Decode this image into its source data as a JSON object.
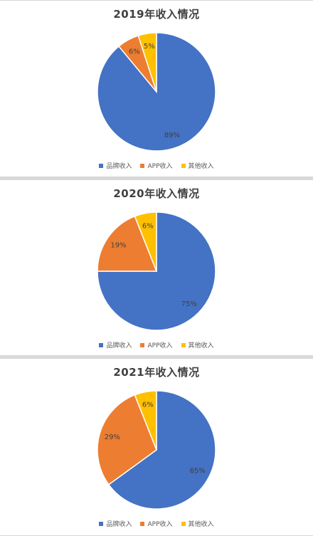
{
  "colors": {
    "brand": "#4472c4",
    "app": "#ed7d31",
    "other": "#ffc000",
    "label": "#404040"
  },
  "chart_data": [
    {
      "type": "pie",
      "title": "2019年收入情况",
      "categories": [
        "品牌收入",
        "APP收入",
        "其他收入"
      ],
      "values": [
        89,
        6,
        5
      ],
      "labels": [
        "89%",
        "6%",
        "5%"
      ],
      "legend_position": "bottom"
    },
    {
      "type": "pie",
      "title": "2020年收入情况",
      "categories": [
        "品牌收入",
        "APP收入",
        "其他收入"
      ],
      "values": [
        75,
        19,
        6
      ],
      "labels": [
        "75%",
        "19%",
        "6%"
      ],
      "legend_position": "bottom"
    },
    {
      "type": "pie",
      "title": "2021年收入情况",
      "categories": [
        "品牌收入",
        "APP收入",
        "其他收入"
      ],
      "values": [
        65,
        29,
        6
      ],
      "labels": [
        "65%",
        "29%",
        "6%"
      ],
      "legend_position": "bottom"
    }
  ]
}
